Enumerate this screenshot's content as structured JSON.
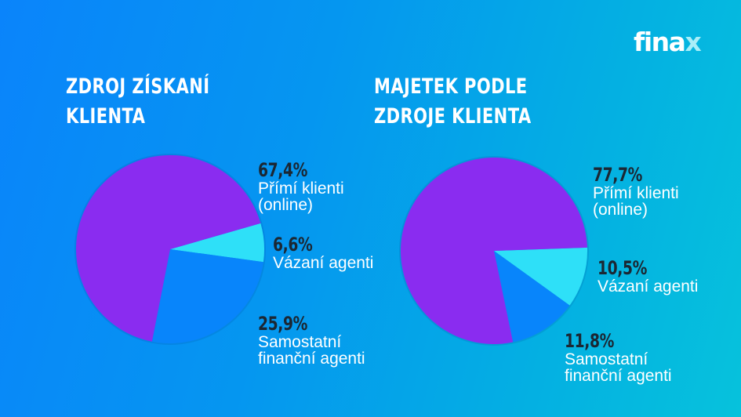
{
  "brand": {
    "logo_main": "fina",
    "logo_accent": "x"
  },
  "colors": {
    "direct": "#8a2cf0",
    "tied": "#2ee0f8",
    "independent": "#0885fb",
    "pct_text": "#1b2733"
  },
  "chart_data": [
    {
      "type": "pie",
      "title": "ZDROJ ZÍSKANÍ KLIENTA",
      "title_lines": [
        "ZDROJ ZÍSKANÍ",
        "KLIENTA"
      ],
      "categories": [
        "Přímí klienti (online)",
        "Vázaní agenti",
        "Samostatní finanční agenti"
      ],
      "values": [
        67.4,
        6.6,
        25.9
      ],
      "labels": [
        {
          "pct": "67,4%",
          "text": "Přímí klienti\n(online)"
        },
        {
          "pct": "6,6%",
          "text": "Vázaní agenti"
        },
        {
          "pct": "25,9%",
          "text": "Samostatní\nfinanční agenti"
        }
      ],
      "colors": [
        "#8a2cf0",
        "#2ee0f8",
        "#0885fb"
      ],
      "legend_position": "right"
    },
    {
      "type": "pie",
      "title": "MAJETEK PODLE ZDROJE KLIENTA",
      "title_lines": [
        "MAJETEK PODLE",
        "ZDROJE KLIENTA"
      ],
      "categories": [
        "Přímí klienti (online)",
        "Vázaní agenti",
        "Samostatní finanční agenti"
      ],
      "values": [
        77.7,
        10.5,
        11.8
      ],
      "labels": [
        {
          "pct": "77,7%",
          "text": "Přímí klienti\n(online)"
        },
        {
          "pct": "10,5%",
          "text": "Vázaní agenti"
        },
        {
          "pct": "11,8%",
          "text": "Samostatní\nfinanční agenti"
        }
      ],
      "colors": [
        "#8a2cf0",
        "#2ee0f8",
        "#0885fb"
      ],
      "legend_position": "right"
    }
  ]
}
